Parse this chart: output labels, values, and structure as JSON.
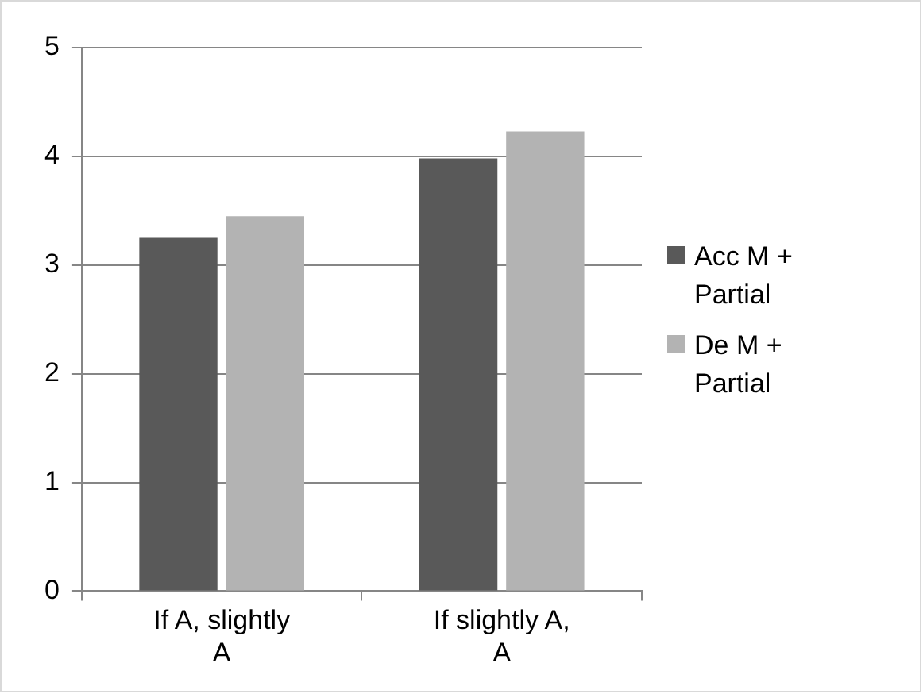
{
  "chart_data": {
    "type": "bar",
    "categories": [
      "If A, slightly A",
      "If slightly A, A"
    ],
    "series": [
      {
        "name": "Acc M + Partial",
        "color": "#595959",
        "values": [
          3.25,
          3.98
        ]
      },
      {
        "name": "De M + Partial",
        "color": "#b3b3b3",
        "values": [
          3.45,
          4.23
        ]
      }
    ],
    "ylim": [
      0,
      5
    ],
    "yticks": [
      0,
      1,
      2,
      3,
      4,
      5
    ],
    "grid": "y",
    "legend": "right"
  }
}
